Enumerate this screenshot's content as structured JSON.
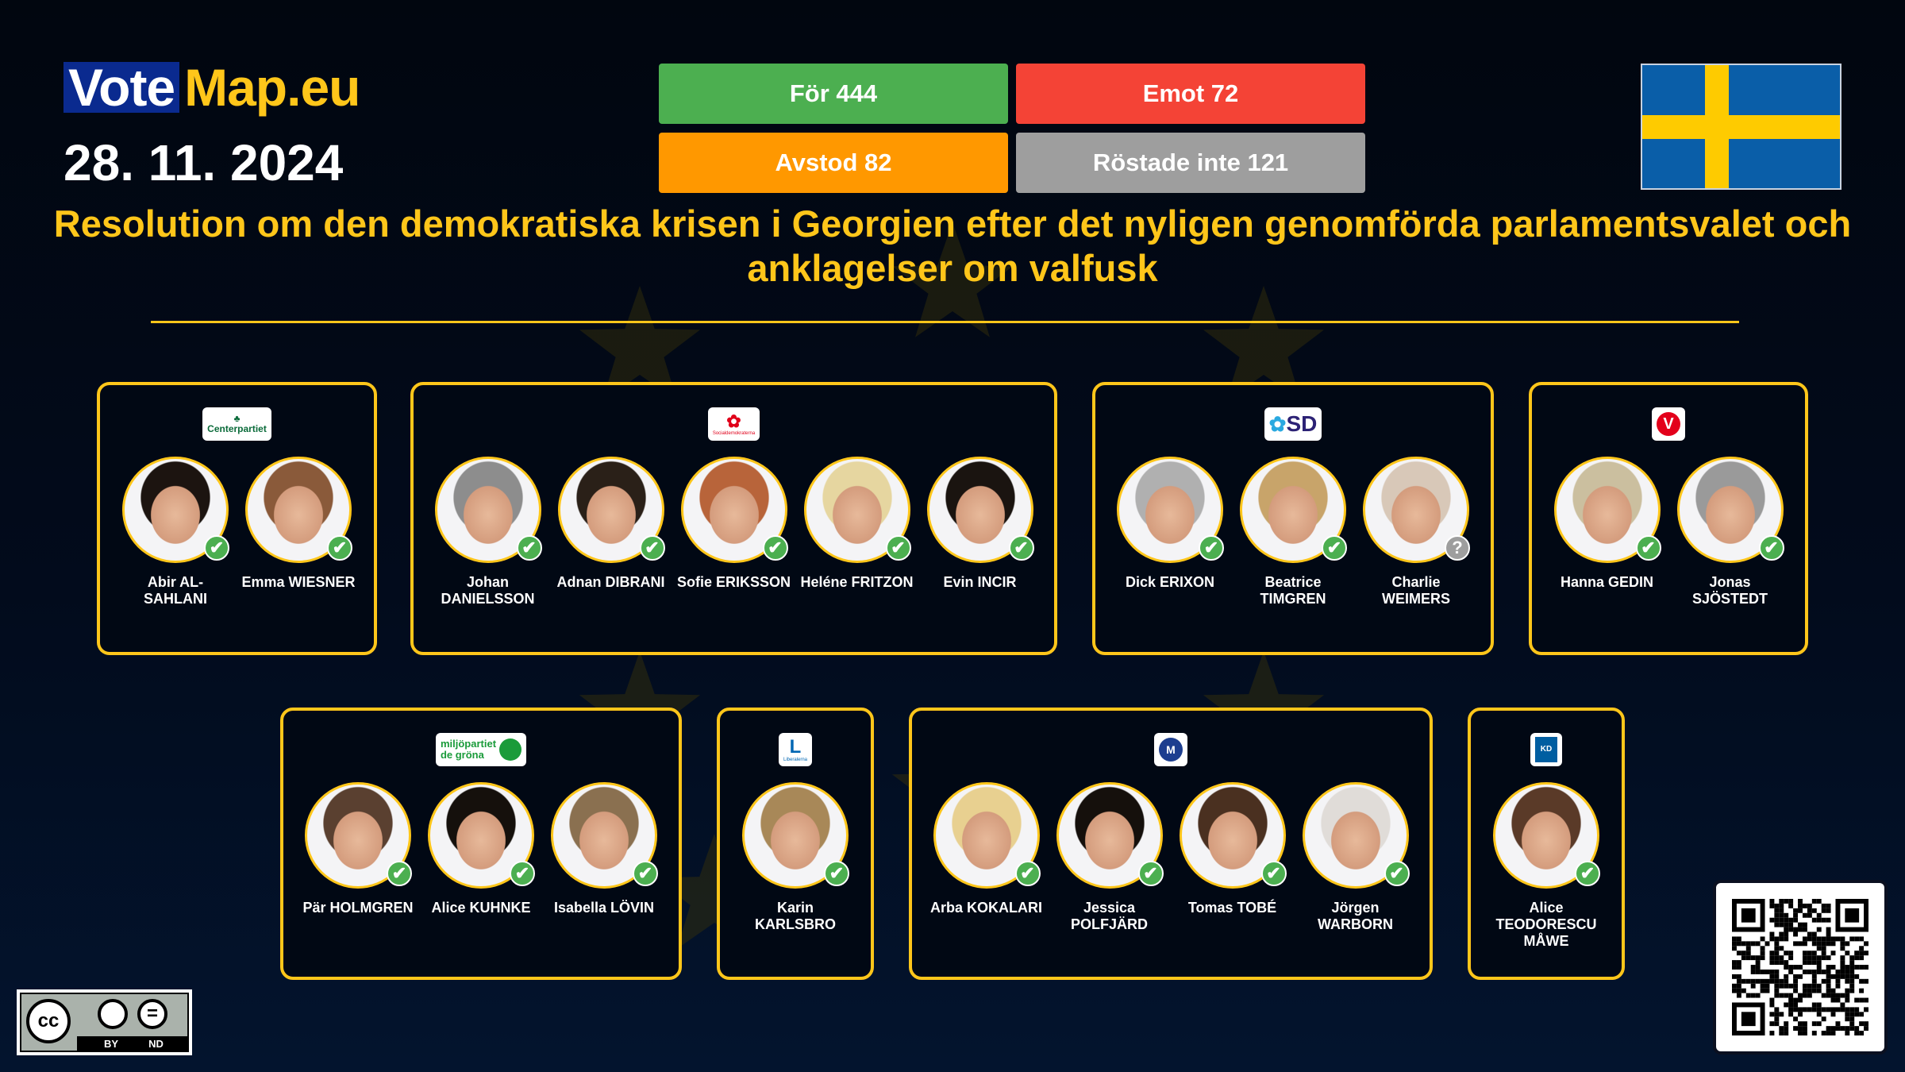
{
  "brand": {
    "vote": "Vote",
    "map": "Map.eu"
  },
  "date": "28. 11. 2024",
  "votes": {
    "for": {
      "label": "För 444",
      "color": "#4caf50"
    },
    "against": {
      "label": "Emot 72",
      "color": "#f44336"
    },
    "abstain": {
      "label": "Avstod 82",
      "color": "#ff9800"
    },
    "not_voted": {
      "label": "Röstade inte 121",
      "color": "#9e9e9e"
    }
  },
  "country_flag": "sweden-flag",
  "title": "Resolution om den demokratiska krisen i Georgien efter det nyligen genomförda parlamentsvalet och anklagelser om valfusk",
  "groups": [
    {
      "party": "Centerpartiet",
      "members": [
        {
          "name": "Abir AL-SAHLANI",
          "vote": "for"
        },
        {
          "name": "Emma WIESNER",
          "vote": "for"
        }
      ]
    },
    {
      "party": "Socialdemokraterna",
      "members": [
        {
          "name": "Johan DANIELSSON",
          "vote": "for"
        },
        {
          "name": "Adnan DIBRANI",
          "vote": "for"
        },
        {
          "name": "Sofie ERIKSSON",
          "vote": "for"
        },
        {
          "name": "Heléne FRITZON",
          "vote": "for"
        },
        {
          "name": "Evin INCIR",
          "vote": "for"
        }
      ]
    },
    {
      "party": "SD",
      "members": [
        {
          "name": "Dick ERIXON",
          "vote": "for"
        },
        {
          "name": "Beatrice TIMGREN",
          "vote": "for"
        },
        {
          "name": "Charlie WEIMERS",
          "vote": "not_voted"
        }
      ]
    },
    {
      "party": "V",
      "members": [
        {
          "name": "Hanna GEDIN",
          "vote": "for"
        },
        {
          "name": "Jonas SJÖSTEDT",
          "vote": "for"
        }
      ]
    },
    {
      "party": "miljöpartiet de gröna",
      "members": [
        {
          "name": "Pär HOLMGREN",
          "vote": "for"
        },
        {
          "name": "Alice KUHNKE",
          "vote": "for"
        },
        {
          "name": "Isabella LÖVIN",
          "vote": "for"
        }
      ]
    },
    {
      "party": "Liberalerna",
      "members": [
        {
          "name": "Karin KARLSBRO",
          "vote": "for"
        }
      ]
    },
    {
      "party": "Moderaterna",
      "members": [
        {
          "name": "Arba KOKALARI",
          "vote": "for"
        },
        {
          "name": "Jessica POLFJÄRD",
          "vote": "for"
        },
        {
          "name": "Tomas TOBÉ",
          "vote": "for"
        },
        {
          "name": "Jörgen WARBORN",
          "vote": "for"
        }
      ]
    },
    {
      "party": "KD",
      "members": [
        {
          "name": "Alice TEODORESCU MÅWE",
          "vote": "for"
        }
      ]
    }
  ],
  "license": {
    "cc": "cc",
    "by": "BY",
    "nd": "ND"
  }
}
